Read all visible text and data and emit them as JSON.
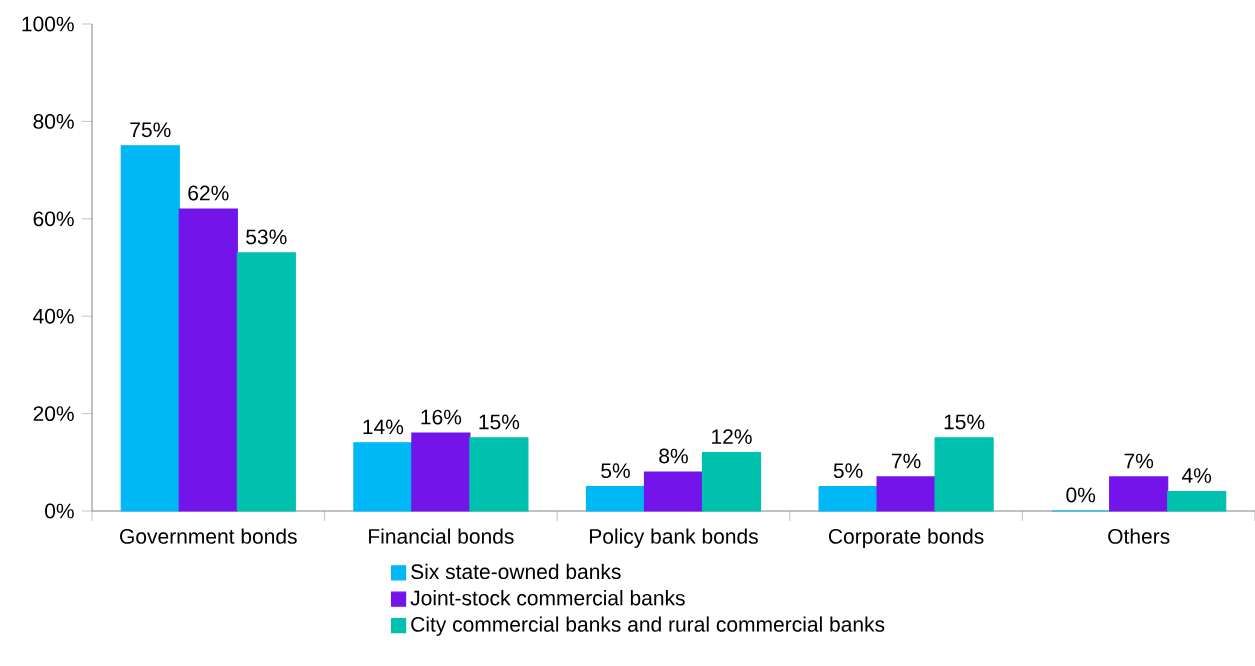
{
  "chart_data": {
    "type": "bar",
    "categories": [
      "Government bonds",
      "Financial bonds",
      "Policy bank bonds",
      "Corporate bonds",
      "Others"
    ],
    "series": [
      {
        "name": "Six state-owned banks",
        "color": "#00b8f5",
        "values": [
          75,
          14,
          5,
          5,
          0
        ],
        "value_labels": [
          "75%",
          "14%",
          "5%",
          "5%",
          "0%"
        ]
      },
      {
        "name": "Joint-stock commercial banks",
        "color": "#7214ea",
        "values": [
          62,
          16,
          8,
          7,
          7
        ],
        "value_labels": [
          "62%",
          "16%",
          "8%",
          "7%",
          "7%"
        ]
      },
      {
        "name": "City commercial banks and rural commercial banks",
        "color": "#00c0ae",
        "values": [
          53,
          15,
          12,
          15,
          4
        ],
        "value_labels": [
          "53%",
          "15%",
          "12%",
          "15%",
          "4%"
        ]
      }
    ],
    "ylim": [
      0,
      100
    ],
    "yticks": [
      {
        "value": 0,
        "label": "0%"
      },
      {
        "value": 20,
        "label": "20%"
      },
      {
        "value": 40,
        "label": "40%"
      },
      {
        "value": 60,
        "label": "60%"
      },
      {
        "value": 80,
        "label": "80%"
      },
      {
        "value": 100,
        "label": "100%"
      }
    ],
    "legend": "bottom",
    "grid": false
  }
}
